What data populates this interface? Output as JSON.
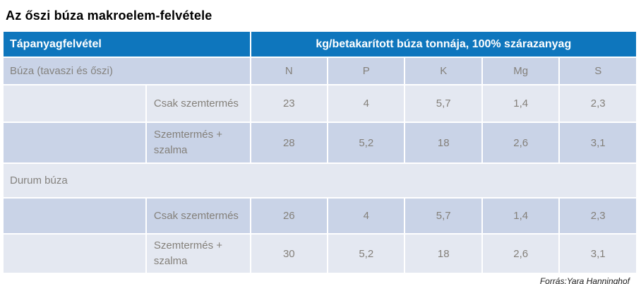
{
  "page_title": "Az őszi búza makroelem-felvétele",
  "table": {
    "header": {
      "col1": "Tápanyagfelvétel",
      "col2": "kg/betakarított búza tonnája, 100% szárazanyag"
    },
    "nutrient_headers": [
      "N",
      "P",
      "K",
      "Mg",
      "S"
    ],
    "groups": [
      {
        "name": "Búza (tavaszi és őszi)",
        "rows": [
          {
            "label": "Csak szemtermés",
            "values": [
              "23",
              "4",
              "5,7",
              "1,4",
              "2,3"
            ]
          },
          {
            "label": "Szemtermés + szalma",
            "values": [
              "28",
              "5,2",
              "18",
              "2,6",
              "3,1"
            ]
          }
        ]
      },
      {
        "name": "Durum búza",
        "rows": [
          {
            "label": "Csak szemtermés",
            "values": [
              "26",
              "4",
              "5,7",
              "1,4",
              "2,3"
            ]
          },
          {
            "label": "Szemtermés + szalma",
            "values": [
              "30",
              "5,2",
              "18",
              "2,6",
              "3,1"
            ]
          }
        ]
      }
    ]
  },
  "footer": {
    "source": "Forrás:Yara Hanninghof"
  },
  "colors": {
    "header_bg": "#0e76bd",
    "header_text": "#ffffff",
    "row_medium": "#c9d3e7",
    "row_light": "#e4e8f1",
    "cell_text": "#84807a",
    "title_text": "#000000"
  },
  "chart_data": {
    "type": "table",
    "title": "Az őszi búza makroelem-felvétele",
    "unit_header": "kg/betakarított búza tonnája, 100% szárazanyag",
    "columns": [
      "Tápanyagfelvétel",
      "",
      "N",
      "P",
      "K",
      "Mg",
      "S"
    ],
    "rows": [
      [
        "Búza (tavaszi és őszi)",
        "",
        null,
        null,
        null,
        null,
        null
      ],
      [
        "",
        "Csak szemtermés",
        23,
        4,
        5.7,
        1.4,
        2.3
      ],
      [
        "",
        "Szemtermés + szalma",
        28,
        5.2,
        18,
        2.6,
        3.1
      ],
      [
        "Durum búza",
        "",
        null,
        null,
        null,
        null,
        null
      ],
      [
        "",
        "Csak szemtermés",
        26,
        4,
        5.7,
        1.4,
        2.3
      ],
      [
        "",
        "Szemtermés + szalma",
        30,
        5.2,
        18,
        2.6,
        3.1
      ]
    ],
    "source": "Forrás:Yara Hanninghof"
  }
}
